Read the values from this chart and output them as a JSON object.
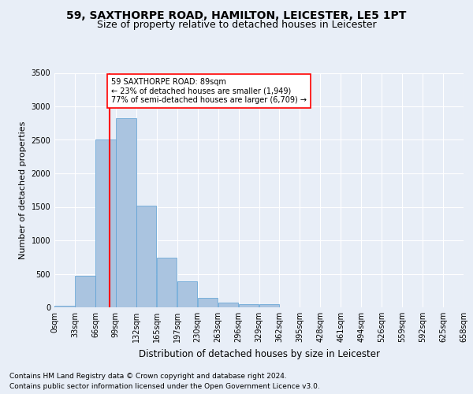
{
  "title1": "59, SAXTHORPE ROAD, HAMILTON, LEICESTER, LE5 1PT",
  "title2": "Size of property relative to detached houses in Leicester",
  "xlabel": "Distribution of detached houses by size in Leicester",
  "ylabel": "Number of detached properties",
  "footnote1": "Contains HM Land Registry data © Crown copyright and database right 2024.",
  "footnote2": "Contains public sector information licensed under the Open Government Licence v3.0.",
  "bin_labels": [
    "0sqm",
    "33sqm",
    "66sqm",
    "99sqm",
    "132sqm",
    "165sqm",
    "197sqm",
    "230sqm",
    "263sqm",
    "296sqm",
    "329sqm",
    "362sqm",
    "395sqm",
    "428sqm",
    "461sqm",
    "494sqm",
    "526sqm",
    "559sqm",
    "592sqm",
    "625sqm",
    "658sqm"
  ],
  "bar_values": [
    20,
    470,
    2500,
    2820,
    1520,
    740,
    390,
    140,
    75,
    50,
    50,
    0,
    0,
    0,
    0,
    0,
    0,
    0,
    0,
    0
  ],
  "bar_color": "#aac4e0",
  "bar_edge_color": "#5a9fd4",
  "vline_x": 89,
  "vline_color": "red",
  "annotation_text": "59 SAXTHORPE ROAD: 89sqm\n← 23% of detached houses are smaller (1,949)\n77% of semi-detached houses are larger (6,709) →",
  "annotation_box_color": "white",
  "annotation_box_edge": "red",
  "ylim": [
    0,
    3500
  ],
  "xlim_min": 0,
  "xlim_max": 660,
  "bin_width": 33,
  "background_color": "#e8eef7",
  "axes_bg_color": "#e8eef7",
  "grid_color": "white",
  "title1_fontsize": 10,
  "title2_fontsize": 9,
  "ylabel_fontsize": 8,
  "xlabel_fontsize": 8.5,
  "tick_fontsize": 7,
  "annotation_fontsize": 7,
  "footnote_fontsize": 6.5
}
